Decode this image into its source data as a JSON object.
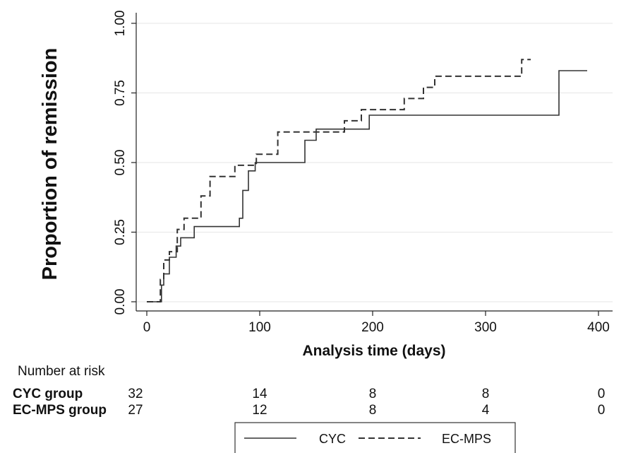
{
  "chart_data": {
    "type": "line",
    "step": true,
    "xlabel": "Analysis time (days)",
    "ylabel": "Proportion of remission",
    "xlim": [
      0,
      400
    ],
    "ylim": [
      0,
      1
    ],
    "x_ticks": [
      0,
      100,
      200,
      300,
      400
    ],
    "y_ticks": [
      "0.00",
      "0.25",
      "0.50",
      "0.75",
      "1.00"
    ],
    "y_grid": true,
    "legend_position": "bottom",
    "series": [
      {
        "name": "CYC",
        "line_style": "solid",
        "points": [
          [
            0,
            0
          ],
          [
            13,
            0
          ],
          [
            13,
            0.06
          ],
          [
            15,
            0.06
          ],
          [
            15,
            0.1
          ],
          [
            20,
            0.1
          ],
          [
            20,
            0.16
          ],
          [
            26,
            0.16
          ],
          [
            26,
            0.2
          ],
          [
            30,
            0.2
          ],
          [
            30,
            0.23
          ],
          [
            42,
            0.23
          ],
          [
            42,
            0.27
          ],
          [
            82,
            0.27
          ],
          [
            82,
            0.3
          ],
          [
            85,
            0.3
          ],
          [
            85,
            0.4
          ],
          [
            90,
            0.4
          ],
          [
            90,
            0.47
          ],
          [
            96,
            0.47
          ],
          [
            96,
            0.5
          ],
          [
            140,
            0.5
          ],
          [
            140,
            0.58
          ],
          [
            150,
            0.58
          ],
          [
            150,
            0.62
          ],
          [
            197,
            0.62
          ],
          [
            197,
            0.67
          ],
          [
            365,
            0.67
          ],
          [
            365,
            0.83
          ],
          [
            390,
            0.83
          ]
        ]
      },
      {
        "name": "EC-MPS",
        "line_style": "dashed",
        "points": [
          [
            0,
            0
          ],
          [
            12,
            0
          ],
          [
            12,
            0.08
          ],
          [
            15,
            0.08
          ],
          [
            15,
            0.15
          ],
          [
            20,
            0.15
          ],
          [
            20,
            0.18
          ],
          [
            27,
            0.18
          ],
          [
            27,
            0.26
          ],
          [
            33,
            0.26
          ],
          [
            33,
            0.3
          ],
          [
            48,
            0.3
          ],
          [
            48,
            0.38
          ],
          [
            56,
            0.38
          ],
          [
            56,
            0.45
          ],
          [
            78,
            0.45
          ],
          [
            78,
            0.49
          ],
          [
            97,
            0.49
          ],
          [
            97,
            0.53
          ],
          [
            116,
            0.53
          ],
          [
            116,
            0.61
          ],
          [
            175,
            0.61
          ],
          [
            175,
            0.65
          ],
          [
            190,
            0.65
          ],
          [
            190,
            0.69
          ],
          [
            228,
            0.69
          ],
          [
            228,
            0.73
          ],
          [
            245,
            0.73
          ],
          [
            245,
            0.77
          ],
          [
            255,
            0.77
          ],
          [
            255,
            0.81
          ],
          [
            332,
            0.81
          ],
          [
            332,
            0.87
          ],
          [
            340,
            0.87
          ]
        ]
      }
    ]
  },
  "risk_table": {
    "title": "Number at risk",
    "time_points": [
      0,
      100,
      200,
      300,
      400
    ],
    "rows": [
      {
        "label": "CYC group",
        "values": [
          "32",
          "14",
          "8",
          "8",
          "0"
        ]
      },
      {
        "label": "EC-MPS group",
        "values": [
          "27",
          "12",
          "8",
          "4",
          "0"
        ]
      }
    ]
  },
  "legend": {
    "items": [
      {
        "label": "CYC",
        "line_style": "solid"
      },
      {
        "label": "EC-MPS",
        "line_style": "dashed"
      }
    ]
  }
}
